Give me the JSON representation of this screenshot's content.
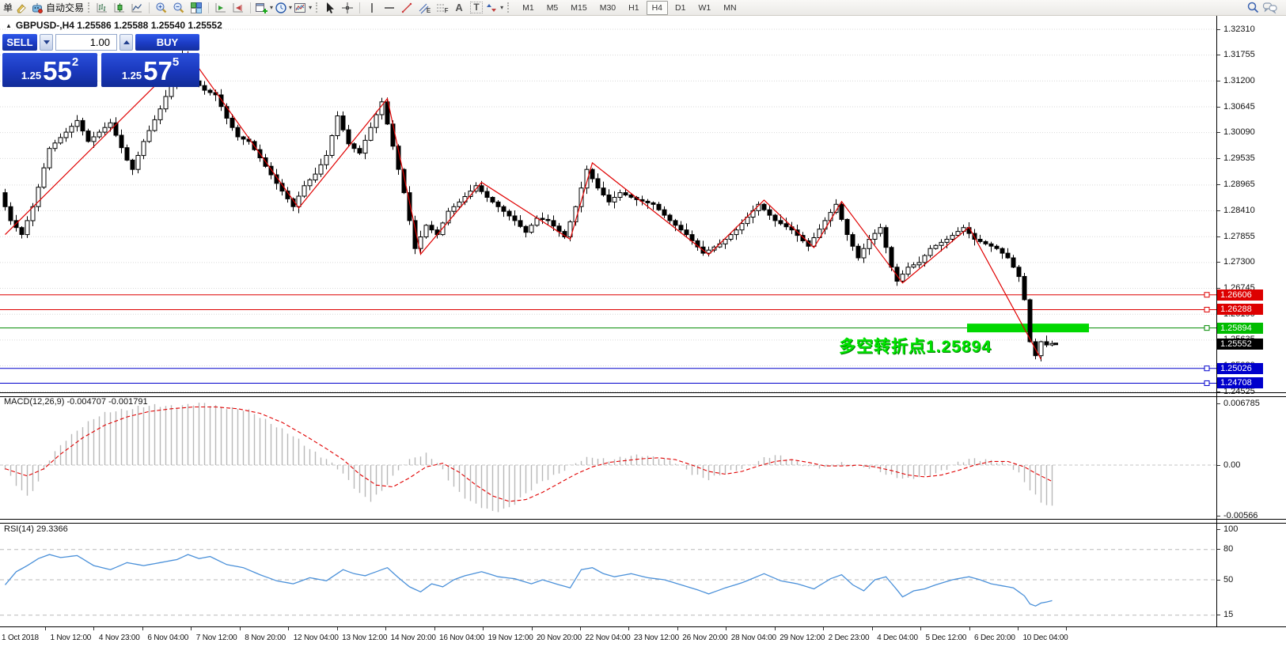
{
  "toolbar": {
    "order_label": "单",
    "autotrade_label": "自动交易",
    "icon_letters": {
      "channel": "E",
      "fibo": "F",
      "text": "A",
      "label": "T"
    },
    "timeframes": [
      "M1",
      "M5",
      "M15",
      "M30",
      "H1",
      "H4",
      "D1",
      "W1",
      "MN"
    ],
    "active_timeframe": "H4"
  },
  "window": {
    "title": "GBPUSD-,H4 1.25586 1.25588 1.25540 1.25552"
  },
  "trade_panel": {
    "sell_label": "SELL",
    "buy_label": "BUY",
    "volume": "1.00",
    "sell_price": {
      "prefix": "1.25",
      "big": "55",
      "sup": "2"
    },
    "buy_price": {
      "prefix": "1.25",
      "big": "57",
      "sup": "5"
    }
  },
  "annotation": {
    "text": "多空转折点1.25894",
    "color": "#00e400"
  },
  "chart_data": {
    "type": "candlestick",
    "symbol": "GBPUSD-",
    "period": "H4",
    "grid_color": "#d9d9d9",
    "candle": {
      "bull": "#ffffff",
      "bear": "#000000",
      "outline": "#000000"
    },
    "y_axis": {
      "ticks": [
        "1.32310",
        "1.31755",
        "1.31200",
        "1.30645",
        "1.30090",
        "1.29535",
        "1.28965",
        "1.28410",
        "1.27855",
        "1.27300",
        "1.26745",
        "1.26190",
        "1.25635",
        "1.25080",
        "1.24525"
      ]
    },
    "x_axis": {
      "labels": [
        "1 Oct 2018",
        "1 Nov 12:00",
        "4 Nov 23:00",
        "6 Nov 04:00",
        "7 Nov 12:00",
        "8 Nov 20:00",
        "12 Nov 04:00",
        "13 Nov 12:00",
        "14 Nov 20:00",
        "16 Nov 04:00",
        "19 Nov 12:00",
        "20 Nov 20:00",
        "22 Nov 04:00",
        "23 Nov 12:00",
        "26 Nov 20:00",
        "28 Nov 04:00",
        "29 Nov 12:00",
        "2 Dec 23:00",
        "4 Dec 04:00",
        "5 Dec 12:00",
        "6 Dec 20:00",
        "10 Dec 04:00"
      ]
    },
    "current_price": {
      "value": "1.25552",
      "bg": "#000000"
    },
    "price_levels": [
      {
        "value": "1.26606",
        "price": 1.26606,
        "color": "#dd0000"
      },
      {
        "value": "1.26288",
        "price": 1.26288,
        "color": "#dd0000"
      },
      {
        "value": "1.25894",
        "price": 1.25894,
        "color": "#008a00",
        "label_bg": "#00bc00"
      },
      {
        "value": "1.25026",
        "price": 1.25026,
        "color": "#0000cc"
      },
      {
        "value": "1.24708",
        "price": 1.24708,
        "color": "#0000cc"
      }
    ],
    "highlight_band": {
      "price": 1.25894,
      "from_index": 174,
      "to_index": 196,
      "color": "#00d800",
      "thickness": 11
    },
    "price_path": [
      [
        0,
        1.288
      ],
      [
        2,
        1.282
      ],
      [
        4,
        1.279
      ],
      [
        6,
        1.285
      ],
      [
        9,
        1.2975
      ],
      [
        12,
        1.301
      ],
      [
        14,
        1.3035
      ],
      [
        16,
        1.299
      ],
      [
        18,
        1.301
      ],
      [
        20,
        1.303
      ],
      [
        23,
        1.295
      ],
      [
        24,
        1.293
      ],
      [
        26,
        1.299
      ],
      [
        29,
        1.306
      ],
      [
        32,
        1.314
      ],
      [
        33,
        1.3178
      ],
      [
        34,
        1.315
      ],
      [
        35,
        1.312
      ],
      [
        37,
        1.31
      ],
      [
        39,
        1.309
      ],
      [
        41,
        1.304
      ],
      [
        43,
        1.3
      ],
      [
        45,
        1.299
      ],
      [
        47,
        1.2955
      ],
      [
        50,
        1.29
      ],
      [
        53,
        1.285
      ],
      [
        55,
        1.2895
      ],
      [
        57,
        1.292
      ],
      [
        59,
        1.296
      ],
      [
        61,
        1.3045
      ],
      [
        63,
        1.2985
      ],
      [
        65,
        1.2965
      ],
      [
        67,
        1.302
      ],
      [
        69,
        1.3075
      ],
      [
        71,
        1.298
      ],
      [
        73,
        1.288
      ],
      [
        75,
        1.276
      ],
      [
        77,
        1.281
      ],
      [
        79,
        1.279
      ],
      [
        81,
        1.284
      ],
      [
        83,
        1.286
      ],
      [
        86,
        1.2895
      ],
      [
        88,
        1.287
      ],
      [
        90,
        1.285
      ],
      [
        93,
        1.282
      ],
      [
        95,
        1.2795
      ],
      [
        97,
        1.2825
      ],
      [
        99,
        1.282
      ],
      [
        102,
        1.2785
      ],
      [
        104,
        1.285
      ],
      [
        106,
        1.293
      ],
      [
        108,
        1.289
      ],
      [
        110,
        1.286
      ],
      [
        112,
        1.288
      ],
      [
        115,
        1.2865
      ],
      [
        118,
        1.2855
      ],
      [
        121,
        1.282
      ],
      [
        124,
        1.279
      ],
      [
        127,
        1.275
      ],
      [
        130,
        1.277
      ],
      [
        133,
        1.28
      ],
      [
        137,
        1.2855
      ],
      [
        140,
        1.282
      ],
      [
        143,
        1.28
      ],
      [
        146,
        1.2765
      ],
      [
        149,
        1.282
      ],
      [
        151,
        1.2855
      ],
      [
        153,
        1.279
      ],
      [
        155,
        1.274
      ],
      [
        157,
        1.278
      ],
      [
        159,
        1.2805
      ],
      [
        161,
        1.272
      ],
      [
        162,
        1.269
      ],
      [
        164,
        1.272
      ],
      [
        166,
        1.273
      ],
      [
        168,
        1.276
      ],
      [
        171,
        1.278
      ],
      [
        174,
        1.2805
      ],
      [
        176,
        1.278
      ],
      [
        178,
        1.277
      ],
      [
        180,
        1.276
      ],
      [
        182,
        1.274
      ],
      [
        184,
        1.27
      ],
      [
        185,
        1.265
      ],
      [
        186,
        1.256
      ],
      [
        187,
        1.253
      ],
      [
        188,
        1.256
      ],
      [
        189,
        1.2553
      ],
      [
        190,
        1.2556
      ]
    ],
    "zigzag": {
      "color": "#e00000",
      "points": [
        [
          0,
          1.279
        ],
        [
          33,
          1.318
        ],
        [
          53,
          1.2847
        ],
        [
          69,
          1.3082
        ],
        [
          75,
          1.2748
        ],
        [
          86,
          1.2902
        ],
        [
          102,
          1.278
        ],
        [
          106,
          1.2944
        ],
        [
          127,
          1.2747
        ],
        [
          137,
          1.2864
        ],
        [
          146,
          1.2762
        ],
        [
          151,
          1.2861
        ],
        [
          162,
          1.2686
        ],
        [
          174,
          1.2806
        ],
        [
          187,
          1.2522
        ]
      ]
    },
    "macd": {
      "label": "MACD(12,26,9) -0.004707 -0.001791",
      "values": [
        -0.004707,
        -0.001791
      ],
      "axis": [
        "0.006785",
        "0.00",
        "-0.00566"
      ],
      "hist_color": "#b8b8b8",
      "signal_color": "#e00000",
      "hist": [
        [
          0,
          -0.0006
        ],
        [
          2,
          -0.0022
        ],
        [
          4,
          -0.0034
        ],
        [
          6,
          -0.0018
        ],
        [
          8,
          0.0006
        ],
        [
          11,
          0.0028
        ],
        [
          14,
          0.0044
        ],
        [
          17,
          0.0054
        ],
        [
          20,
          0.006
        ],
        [
          24,
          0.0064
        ],
        [
          28,
          0.0065
        ],
        [
          32,
          0.0066
        ],
        [
          36,
          0.0067
        ],
        [
          40,
          0.0064
        ],
        [
          44,
          0.0059
        ],
        [
          48,
          0.0047
        ],
        [
          52,
          0.0031
        ],
        [
          55,
          0.0018
        ],
        [
          58,
          0.0007
        ],
        [
          60,
          -0.0004
        ],
        [
          62,
          -0.0018
        ],
        [
          64,
          -0.0031
        ],
        [
          66,
          -0.0038
        ],
        [
          68,
          -0.0029
        ],
        [
          70,
          -0.0014
        ],
        [
          72,
          0.0002
        ],
        [
          74,
          0.001
        ],
        [
          76,
          0.0012
        ],
        [
          78,
          0.0002
        ],
        [
          80,
          -0.0016
        ],
        [
          82,
          -0.003
        ],
        [
          85,
          -0.0044
        ],
        [
          88,
          -0.0052
        ],
        [
          91,
          -0.0046
        ],
        [
          94,
          -0.0032
        ],
        [
          97,
          -0.0018
        ],
        [
          100,
          -0.0008
        ],
        [
          103,
          0.0002
        ],
        [
          106,
          0.0009
        ],
        [
          109,
          0.0006
        ],
        [
          112,
          0.0008
        ],
        [
          115,
          0.0011
        ],
        [
          118,
          0.0009
        ],
        [
          121,
          0.0002
        ],
        [
          124,
          -0.0009
        ],
        [
          127,
          -0.0015
        ],
        [
          130,
          -0.001
        ],
        [
          133,
          -0.0003
        ],
        [
          136,
          0.0005
        ],
        [
          139,
          0.001
        ],
        [
          142,
          0.0007
        ],
        [
          145,
          -0.0002
        ],
        [
          148,
          -0.0004
        ],
        [
          151,
          0.0003
        ],
        [
          154,
          -0.0002
        ],
        [
          157,
          -0.0005
        ],
        [
          160,
          -0.0011
        ],
        [
          163,
          -0.0016
        ],
        [
          166,
          -0.0013
        ],
        [
          169,
          -0.0006
        ],
        [
          172,
          0.0002
        ],
        [
          175,
          0.0007
        ],
        [
          178,
          0.0006
        ],
        [
          181,
          0.0
        ],
        [
          183,
          -0.001
        ],
        [
          185,
          -0.0026
        ],
        [
          187,
          -0.004
        ],
        [
          189,
          -0.0047
        ]
      ],
      "signal": [
        [
          0,
          -0.0004
        ],
        [
          4,
          -0.0012
        ],
        [
          7,
          -0.0004
        ],
        [
          10,
          0.0012
        ],
        [
          14,
          0.003
        ],
        [
          18,
          0.0044
        ],
        [
          22,
          0.0053
        ],
        [
          26,
          0.0059
        ],
        [
          30,
          0.0062
        ],
        [
          34,
          0.0064
        ],
        [
          38,
          0.0064
        ],
        [
          42,
          0.0062
        ],
        [
          46,
          0.0057
        ],
        [
          50,
          0.0047
        ],
        [
          54,
          0.0033
        ],
        [
          58,
          0.0018
        ],
        [
          61,
          0.0006
        ],
        [
          64,
          -0.001
        ],
        [
          67,
          -0.0022
        ],
        [
          70,
          -0.0024
        ],
        [
          73,
          -0.0014
        ],
        [
          76,
          -0.0002
        ],
        [
          79,
          0.0002
        ],
        [
          82,
          -0.0008
        ],
        [
          85,
          -0.0022
        ],
        [
          88,
          -0.0034
        ],
        [
          91,
          -0.004
        ],
        [
          94,
          -0.0038
        ],
        [
          97,
          -0.003
        ],
        [
          100,
          -0.002
        ],
        [
          103,
          -0.001
        ],
        [
          106,
          -0.0002
        ],
        [
          109,
          0.0003
        ],
        [
          112,
          0.0005
        ],
        [
          115,
          0.0007
        ],
        [
          118,
          0.0008
        ],
        [
          121,
          0.0006
        ],
        [
          124,
          0.0
        ],
        [
          127,
          -0.0007
        ],
        [
          130,
          -0.001
        ],
        [
          133,
          -0.0007
        ],
        [
          136,
          -0.0001
        ],
        [
          139,
          0.0004
        ],
        [
          142,
          0.0006
        ],
        [
          145,
          0.0003
        ],
        [
          148,
          -0.0001
        ],
        [
          151,
          -0.0001
        ],
        [
          154,
          0.0
        ],
        [
          157,
          -0.0002
        ],
        [
          160,
          -0.0006
        ],
        [
          163,
          -0.0011
        ],
        [
          166,
          -0.0013
        ],
        [
          169,
          -0.0011
        ],
        [
          172,
          -0.0006
        ],
        [
          175,
          0.0
        ],
        [
          178,
          0.0004
        ],
        [
          181,
          0.0004
        ],
        [
          184,
          -0.0002
        ],
        [
          186,
          -0.0009
        ],
        [
          189,
          -0.0018
        ]
      ]
    },
    "rsi": {
      "label": "RSI(14) 29.3366",
      "value": 29.3366,
      "axis": [
        "100",
        "80",
        "50",
        "15"
      ],
      "levels": [
        80,
        50,
        15
      ],
      "color": "#4a90d9",
      "points": [
        [
          0,
          45
        ],
        [
          2,
          58
        ],
        [
          4,
          64
        ],
        [
          6,
          71
        ],
        [
          8,
          75
        ],
        [
          10,
          72
        ],
        [
          13,
          74
        ],
        [
          16,
          64
        ],
        [
          19,
          60
        ],
        [
          22,
          67
        ],
        [
          25,
          64
        ],
        [
          28,
          67
        ],
        [
          31,
          70
        ],
        [
          33,
          75
        ],
        [
          35,
          71
        ],
        [
          37,
          73
        ],
        [
          40,
          65
        ],
        [
          43,
          62
        ],
        [
          46,
          55
        ],
        [
          49,
          49
        ],
        [
          52,
          46
        ],
        [
          55,
          52
        ],
        [
          58,
          49
        ],
        [
          61,
          60
        ],
        [
          63,
          56
        ],
        [
          65,
          54
        ],
        [
          67,
          58
        ],
        [
          69,
          62
        ],
        [
          71,
          52
        ],
        [
          73,
          43
        ],
        [
          75,
          38
        ],
        [
          77,
          46
        ],
        [
          79,
          43
        ],
        [
          81,
          50
        ],
        [
          83,
          54
        ],
        [
          86,
          58
        ],
        [
          89,
          53
        ],
        [
          92,
          51
        ],
        [
          95,
          46
        ],
        [
          97,
          50
        ],
        [
          100,
          45
        ],
        [
          102,
          42
        ],
        [
          104,
          60
        ],
        [
          106,
          62
        ],
        [
          108,
          56
        ],
        [
          110,
          53
        ],
        [
          113,
          56
        ],
        [
          116,
          52
        ],
        [
          119,
          50
        ],
        [
          122,
          45
        ],
        [
          125,
          40
        ],
        [
          127,
          36
        ],
        [
          130,
          42
        ],
        [
          133,
          47
        ],
        [
          137,
          56
        ],
        [
          140,
          49
        ],
        [
          143,
          46
        ],
        [
          146,
          41
        ],
        [
          149,
          51
        ],
        [
          151,
          55
        ],
        [
          153,
          45
        ],
        [
          155,
          39
        ],
        [
          157,
          50
        ],
        [
          159,
          53
        ],
        [
          161,
          40
        ],
        [
          162,
          33
        ],
        [
          164,
          39
        ],
        [
          166,
          41
        ],
        [
          168,
          45
        ],
        [
          171,
          50
        ],
        [
          174,
          53
        ],
        [
          176,
          50
        ],
        [
          178,
          46
        ],
        [
          180,
          44
        ],
        [
          182,
          42
        ],
        [
          184,
          34
        ],
        [
          185,
          26
        ],
        [
          186,
          24
        ],
        [
          187,
          27
        ],
        [
          188,
          28
        ],
        [
          189,
          29.3
        ]
      ]
    }
  }
}
